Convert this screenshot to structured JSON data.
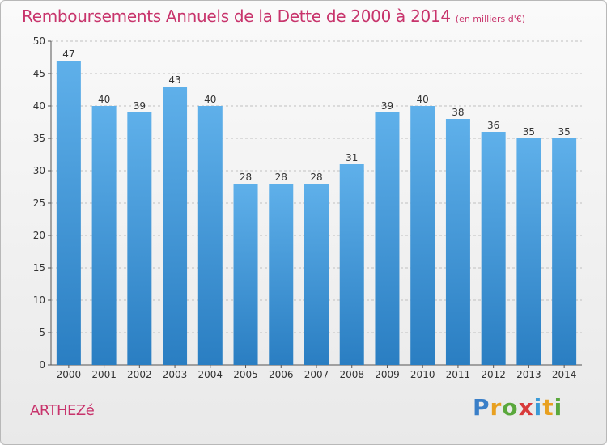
{
  "header": {
    "title": "Remboursements Annuels de la Dette de 2000 à 2014",
    "unit": "(en milliers d'€)"
  },
  "footer": {
    "commune": "ARTHEZé",
    "brand_letters": [
      "P",
      "r",
      "o",
      "x",
      "i",
      "t",
      "i"
    ],
    "brand_colors": [
      "#3a7fc8",
      "#e8a020",
      "#5aa83c",
      "#d83a3a",
      "#3a9ad8",
      "#e8a020",
      "#5aa83c"
    ]
  },
  "colors": {
    "bar_top": "#5fb0ea",
    "bar_bottom": "#2a7ec2",
    "title": "#c8346c",
    "grid": "#c0c0c0"
  },
  "chart_data": {
    "type": "bar",
    "title": "Remboursements Annuels de la Dette de 2000 à 2014",
    "categories": [
      "2000",
      "2001",
      "2002",
      "2003",
      "2004",
      "2005",
      "2006",
      "2007",
      "2008",
      "2009",
      "2010",
      "2011",
      "2012",
      "2013",
      "2014"
    ],
    "values": [
      47,
      40,
      39,
      43,
      40,
      28,
      28,
      28,
      31,
      39,
      40,
      38,
      36,
      35,
      35
    ],
    "ylim": [
      0,
      50
    ],
    "yticks": [
      0,
      5,
      10,
      15,
      20,
      25,
      30,
      35,
      40,
      45,
      50
    ],
    "grid": true,
    "legend": "none"
  }
}
